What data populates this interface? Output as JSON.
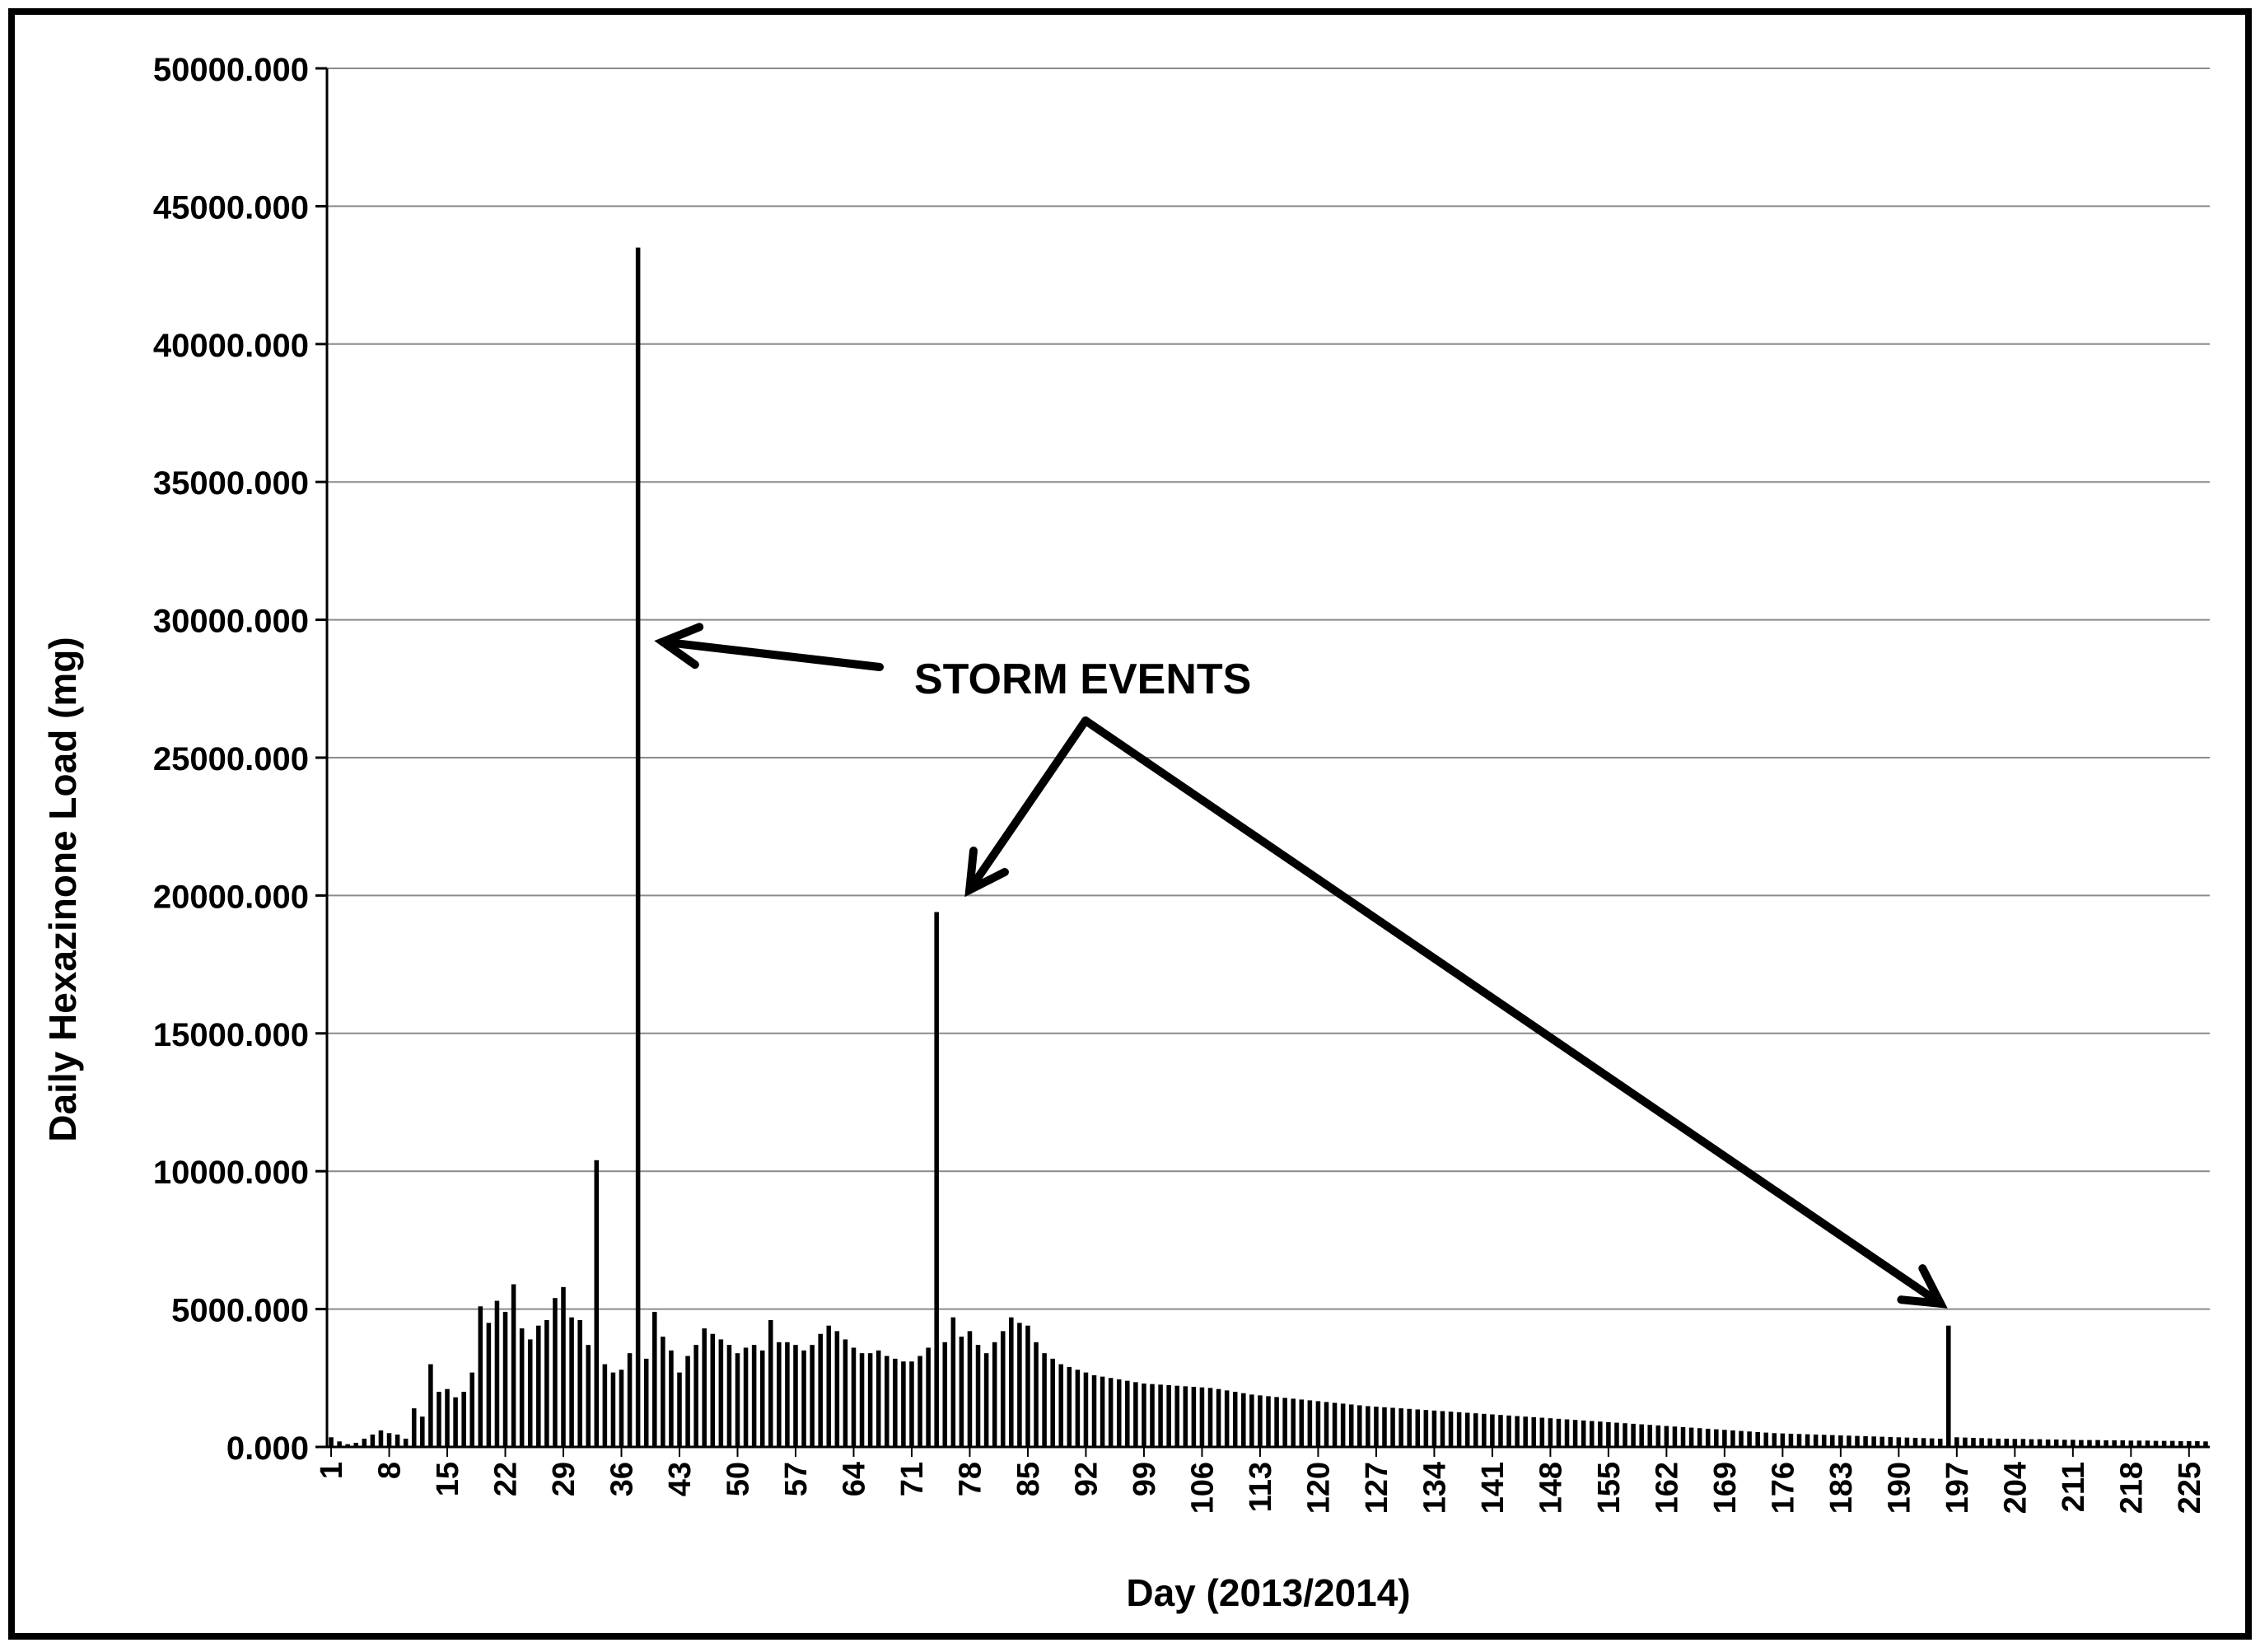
{
  "chart_data": {
    "type": "bar",
    "title": "",
    "xlabel": "Day (2013/2014)",
    "ylabel": "Daily Hexazinone Load (mg)",
    "ylim": [
      0,
      50000
    ],
    "yticks": [
      0,
      5000,
      10000,
      15000,
      20000,
      25000,
      30000,
      35000,
      40000,
      45000,
      50000
    ],
    "ytick_labels": [
      "0.000",
      "5000.000",
      "10000.000",
      "15000.000",
      "20000.000",
      "25000.000",
      "30000.000",
      "35000.000",
      "40000.000",
      "45000.000",
      "50000.000"
    ],
    "xtick_labels": [
      "1",
      "8",
      "15",
      "22",
      "29",
      "36",
      "43",
      "50",
      "57",
      "64",
      "71",
      "78",
      "85",
      "92",
      "99",
      "106",
      "113",
      "120",
      "127",
      "134",
      "141",
      "148",
      "155",
      "162",
      "169",
      "176",
      "183",
      "190",
      "197",
      "204",
      "211",
      "218",
      "225"
    ],
    "xtick_step": 7,
    "x_start": 1,
    "grid": true,
    "bar_color": "#000000",
    "annotation": {
      "text": "STORM EVENTS",
      "targets_day": [
        38,
        74,
        201
      ]
    },
    "values": [
      350,
      200,
      100,
      150,
      300,
      450,
      600,
      500,
      450,
      300,
      1400,
      1100,
      3000,
      2000,
      2100,
      1800,
      2000,
      2700,
      5100,
      4500,
      5300,
      4900,
      5900,
      4300,
      3900,
      4400,
      4600,
      5400,
      5800,
      4700,
      4600,
      3700,
      10400,
      3000,
      2700,
      2800,
      3400,
      43500,
      3200,
      4900,
      4000,
      3500,
      2700,
      3300,
      3700,
      4300,
      4100,
      3900,
      3700,
      3400,
      3600,
      3700,
      3500,
      4600,
      3800,
      3800,
      3700,
      3500,
      3700,
      4100,
      4400,
      4200,
      3900,
      3600,
      3400,
      3400,
      3500,
      3300,
      3200,
      3100,
      3100,
      3300,
      3600,
      19400,
      3800,
      4700,
      4000,
      4200,
      3700,
      3400,
      3800,
      4200,
      4700,
      4500,
      4400,
      3800,
      3400,
      3200,
      3000,
      2900,
      2800,
      2700,
      2600,
      2550,
      2500,
      2450,
      2400,
      2350,
      2300,
      2280,
      2260,
      2240,
      2220,
      2200,
      2180,
      2160,
      2140,
      2100,
      2050,
      2000,
      1950,
      1900,
      1870,
      1840,
      1810,
      1780,
      1750,
      1720,
      1690,
      1660,
      1630,
      1600,
      1570,
      1540,
      1510,
      1480,
      1460,
      1440,
      1420,
      1400,
      1380,
      1360,
      1340,
      1320,
      1300,
      1280,
      1260,
      1240,
      1220,
      1200,
      1180,
      1160,
      1140,
      1120,
      1100,
      1080,
      1060,
      1040,
      1020,
      1000,
      980,
      960,
      940,
      920,
      900,
      880,
      860,
      840,
      820,
      800,
      780,
      760,
      740,
      720,
      700,
      680,
      660,
      640,
      620,
      600,
      580,
      560,
      540,
      520,
      500,
      490,
      480,
      470,
      460,
      450,
      440,
      430,
      420,
      410,
      400,
      390,
      380,
      370,
      360,
      350,
      340,
      330,
      320,
      310,
      300,
      4400,
      350,
      340,
      330,
      320,
      310,
      300,
      300,
      290,
      290,
      280,
      280,
      270,
      270,
      260,
      260,
      250,
      250,
      250,
      240,
      240,
      240,
      230,
      230,
      230,
      220,
      220,
      220,
      210,
      210,
      210,
      200
    ]
  }
}
